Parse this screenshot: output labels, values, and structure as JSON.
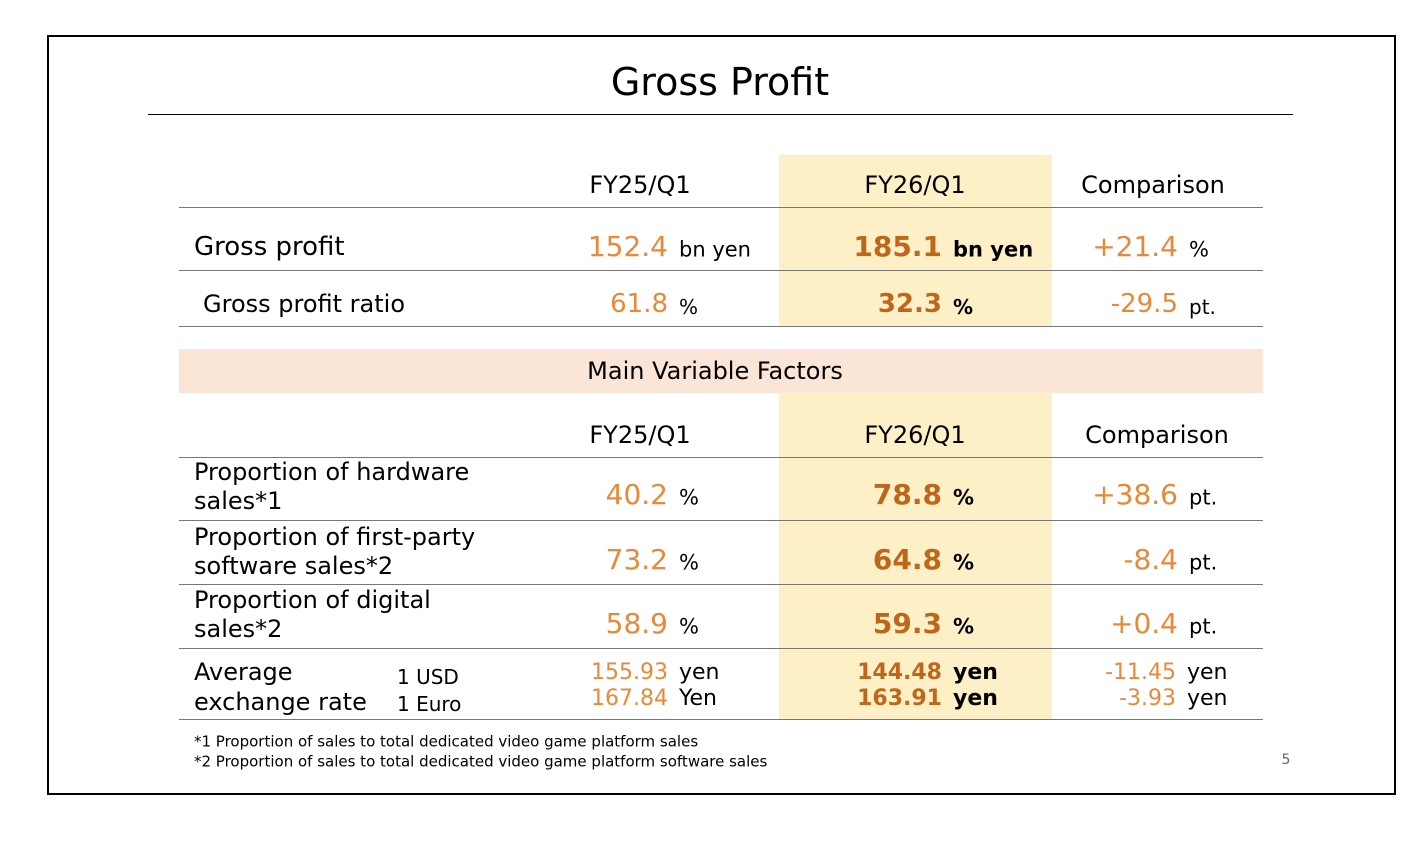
{
  "title": "Gross Profit",
  "table": {
    "headers": [
      "FY25/Q1",
      "FY26/Q1",
      "Comparison"
    ],
    "rows": [
      {
        "label": "Gross profit",
        "cells": [
          {
            "value": "152.4",
            "unit": "bn yen"
          },
          {
            "value": "185.1",
            "unit": "bn yen"
          },
          {
            "value": "+21.4",
            "unit": "%"
          }
        ]
      },
      {
        "label": "Gross profit ratio",
        "cells": [
          {
            "value": "61.8",
            "unit": "%"
          },
          {
            "value": "32.3",
            "unit": "%"
          },
          {
            "value": "-29.5",
            "unit": "pt."
          }
        ]
      }
    ]
  },
  "factors": {
    "title": "Main Variable Factors",
    "headers": [
      "FY25/Q1",
      "FY26/Q1",
      "Comparison"
    ],
    "rows": [
      {
        "label": [
          "Proportion of hardware",
          "sales*1"
        ],
        "cells": [
          {
            "value": "40.2",
            "unit": "%"
          },
          {
            "value": "78.8",
            "unit": "%"
          },
          {
            "value": "+38.6",
            "unit": "pt."
          }
        ]
      },
      {
        "label": [
          "Proportion of first-party",
          "software sales*2"
        ],
        "cells": [
          {
            "value": "73.2",
            "unit": "%"
          },
          {
            "value": "64.8",
            "unit": "%"
          },
          {
            "value": "-8.4",
            "unit": "pt."
          }
        ]
      },
      {
        "label": [
          "Proportion of digital",
          "sales*2"
        ],
        "cells": [
          {
            "value": "58.9",
            "unit": "%"
          },
          {
            "value": "59.3",
            "unit": "%"
          },
          {
            "value": "+0.4",
            "unit": "pt."
          }
        ]
      }
    ],
    "exchange_rate": {
      "label": [
        "Average",
        "exchange rate"
      ],
      "currencies": [
        "1 USD",
        "1 Euro"
      ],
      "cells": [
        [
          {
            "value": "155.93",
            "unit": "yen"
          },
          {
            "value": "167.84",
            "unit": "Yen"
          }
        ],
        [
          {
            "value": "144.48",
            "unit": "yen"
          },
          {
            "value": "163.91",
            "unit": "yen"
          }
        ],
        [
          {
            "value": "-11.45",
            "unit": "yen"
          },
          {
            "value": "-3.93",
            "unit": "yen"
          }
        ]
      ]
    }
  },
  "footnotes": [
    "*1 Proportion of sales to total dedicated video game platform sales",
    "*2 Proportion of sales to total dedicated video game platform software sales"
  ],
  "page_number": "5"
}
